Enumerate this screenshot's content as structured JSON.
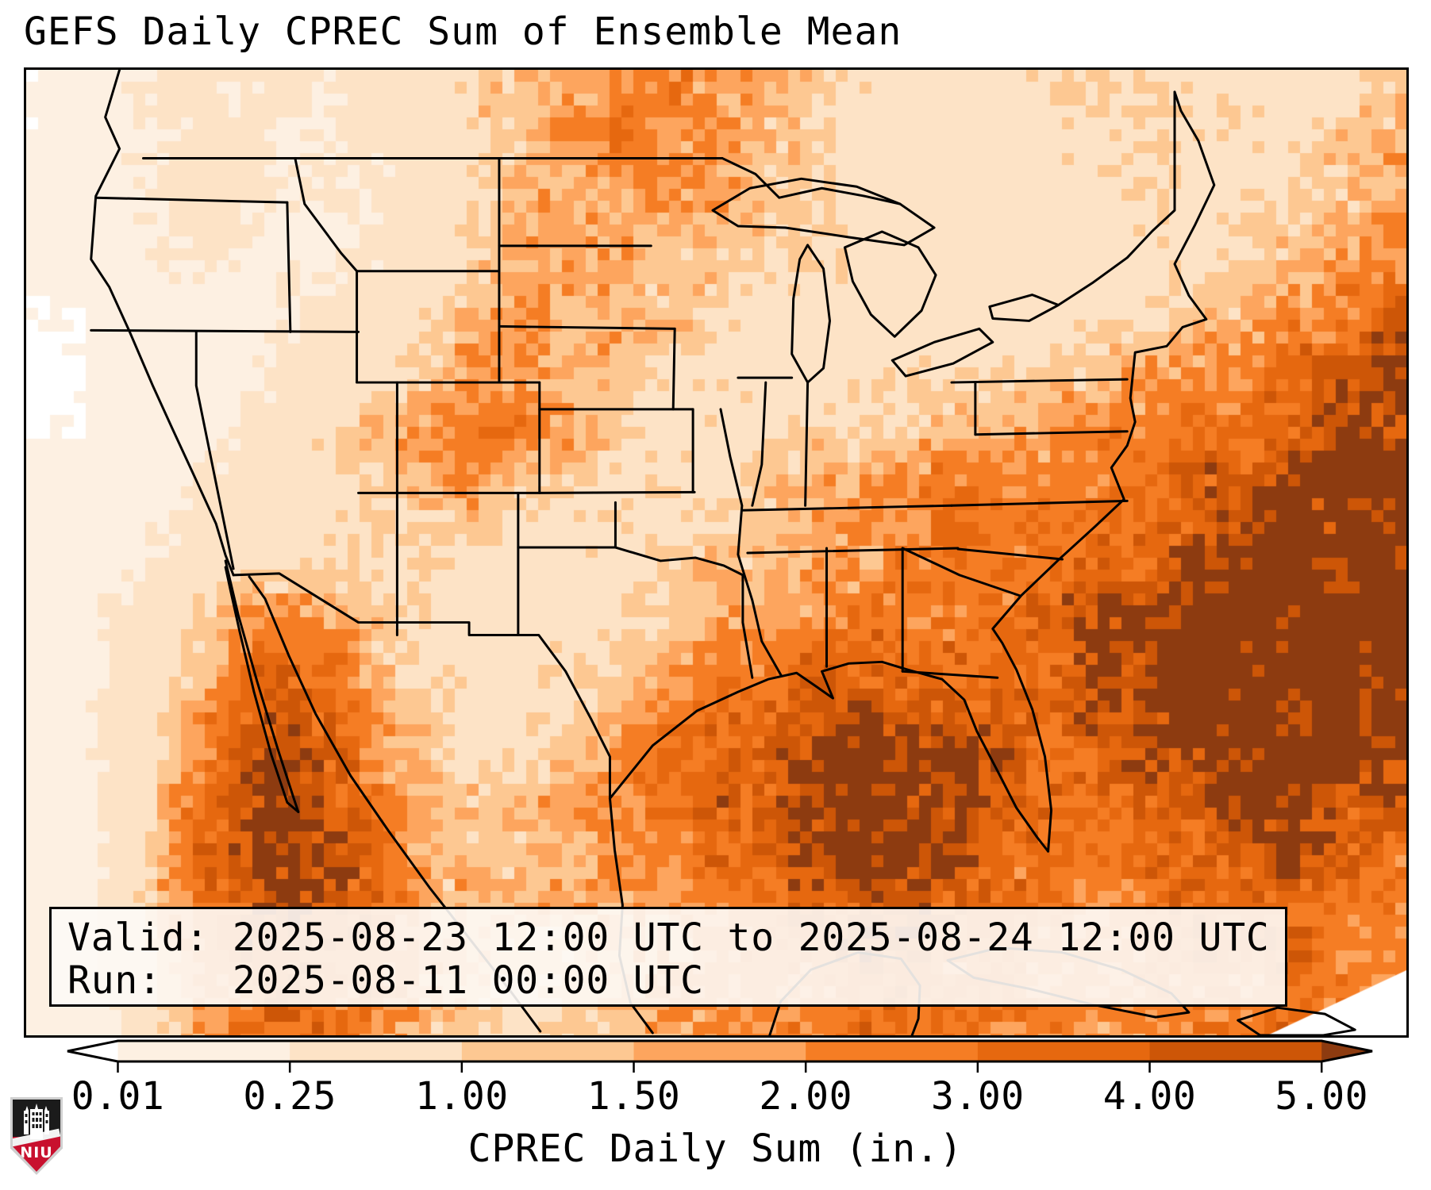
{
  "title": "GEFS Daily CPREC Sum of Ensemble Mean",
  "info_box": {
    "valid_line": "Valid: 2025-08-23 12:00 UTC to 2025-08-24 12:00 UTC",
    "run_line": "Run:   2025-08-11 00:00 UTC"
  },
  "colorbar": {
    "label": "CPREC Daily Sum (in.)",
    "tick_labels": [
      "0.01",
      "0.25",
      "1.00",
      "1.50",
      "2.00",
      "3.00",
      "4.00",
      "5.00"
    ],
    "extend": "both"
  },
  "logo": {
    "text": "NIU",
    "red": "#c8102e",
    "black": "#1b1b1b"
  },
  "chart_data": {
    "type": "heatmap",
    "title": "GEFS Daily CPREC Sum of Ensemble Mean",
    "variable": "CPREC Daily Sum",
    "units": "in.",
    "valid": "2025-08-23 12:00 UTC to 2025-08-24 12:00 UTC",
    "run": "2025-08-11 00:00 UTC",
    "thresholds_in": [
      0.01,
      0.25,
      1.0,
      1.5,
      2.0,
      3.0,
      4.0,
      5.0
    ],
    "palette": [
      "#ffffff",
      "#fdf0e2",
      "#fde3c6",
      "#fdc892",
      "#fda55e",
      "#f57d24",
      "#e6680f",
      "#cd5607",
      "#8d3b10"
    ],
    "legend_note": "colors bin precipitation between thresholds; left arrow < 0.01 in (white), right arrow > 5.00 in (dark brown)",
    "grid_note": "coarse control field of daily precip (inches) over map area, 17 rows (N to S) x 24 cols (W to E); rendered field is bilinearly interpolated with ensemble-like noise",
    "grid_inches": [
      [
        0.008,
        0.04,
        0.3,
        0.4,
        0.3,
        0.3,
        0.5,
        0.8,
        1.2,
        1.8,
        2.2,
        2.4,
        1.8,
        1.2,
        0.8,
        0.6,
        0.6,
        0.8,
        1.2,
        0.8,
        0.6,
        0.7,
        1.0,
        1.2
      ],
      [
        0.008,
        0.05,
        0.25,
        0.35,
        0.3,
        0.3,
        0.4,
        0.7,
        1.3,
        2.0,
        2.5,
        2.2,
        1.6,
        1.0,
        0.8,
        0.6,
        0.5,
        0.7,
        1.0,
        1.2,
        0.8,
        0.8,
        1.2,
        1.5
      ],
      [
        0.01,
        0.06,
        0.3,
        0.4,
        0.25,
        0.25,
        0.3,
        0.6,
        1.1,
        1.6,
        2.0,
        1.8,
        1.5,
        1.0,
        0.8,
        0.5,
        0.4,
        0.6,
        0.8,
        1.0,
        0.7,
        0.9,
        1.4,
        1.8
      ],
      [
        0.01,
        0.05,
        0.2,
        0.3,
        0.2,
        0.2,
        0.3,
        0.8,
        1.4,
        1.8,
        1.7,
        1.5,
        1.2,
        1.0,
        0.7,
        0.5,
        0.4,
        0.5,
        0.7,
        0.8,
        0.9,
        1.2,
        1.8,
        2.2
      ],
      [
        0.008,
        0.01,
        0.1,
        0.15,
        0.2,
        0.3,
        0.5,
        1.0,
        1.6,
        1.8,
        1.5,
        1.2,
        1.0,
        0.8,
        0.6,
        0.5,
        0.5,
        0.6,
        0.7,
        0.9,
        1.2,
        1.8,
        2.6,
        3.6
      ],
      [
        0.008,
        0.01,
        0.08,
        0.12,
        0.3,
        0.6,
        1.0,
        1.5,
        2.2,
        1.8,
        1.2,
        1.0,
        0.8,
        0.7,
        0.7,
        0.8,
        0.9,
        1.1,
        1.4,
        1.8,
        2.2,
        2.8,
        3.8,
        5.0
      ],
      [
        0.008,
        0.01,
        0.05,
        0.1,
        0.4,
        0.8,
        1.4,
        2.2,
        2.6,
        1.6,
        1.0,
        0.8,
        0.8,
        0.9,
        1.1,
        1.4,
        1.7,
        2.0,
        2.4,
        2.8,
        3.2,
        4.0,
        5.0,
        5.8
      ],
      [
        0.05,
        0.05,
        0.1,
        0.3,
        0.6,
        0.8,
        1.2,
        1.6,
        1.4,
        1.0,
        0.8,
        0.8,
        1.0,
        1.4,
        2.2,
        2.6,
        2.4,
        2.2,
        2.6,
        3.2,
        4.2,
        5.5,
        6.2,
        6.4
      ],
      [
        0.1,
        0.1,
        0.2,
        0.5,
        0.8,
        1.0,
        1.0,
        0.8,
        0.8,
        0.7,
        0.8,
        1.0,
        1.2,
        1.6,
        2.0,
        2.4,
        2.6,
        2.8,
        3.2,
        4.5,
        5.8,
        6.4,
        6.5,
        6.5
      ],
      [
        0.15,
        0.2,
        0.4,
        1.0,
        1.8,
        1.6,
        1.0,
        0.6,
        0.5,
        0.6,
        0.8,
        1.2,
        1.6,
        2.0,
        2.4,
        2.8,
        3.0,
        3.4,
        4.5,
        5.8,
        6.5,
        6.5,
        6.5,
        6.5
      ],
      [
        0.01,
        0.2,
        0.5,
        1.6,
        3.0,
        2.6,
        1.4,
        0.8,
        0.6,
        0.8,
        1.2,
        1.8,
        2.6,
        3.2,
        3.6,
        3.4,
        3.2,
        3.6,
        4.5,
        6.0,
        6.5,
        6.5,
        6.5,
        6.5
      ],
      [
        0.01,
        0.15,
        0.6,
        2.2,
        4.5,
        3.6,
        1.8,
        1.0,
        0.8,
        1.2,
        2.0,
        3.0,
        3.8,
        4.5,
        5.5,
        5.0,
        4.0,
        3.4,
        4.0,
        5.5,
        6.5,
        6.5,
        6.5,
        6.2
      ],
      [
        0.008,
        0.1,
        0.8,
        2.8,
        5.5,
        4.2,
        2.2,
        1.2,
        1.0,
        1.6,
        2.4,
        3.2,
        4.2,
        5.8,
        6.4,
        6.0,
        4.5,
        3.2,
        3.0,
        4.0,
        5.5,
        6.3,
        5.5,
        4.5
      ],
      [
        0.008,
        0.1,
        1.0,
        3.2,
        6.0,
        4.8,
        2.6,
        1.4,
        1.2,
        1.6,
        2.2,
        2.8,
        3.6,
        4.8,
        5.8,
        5.2,
        3.8,
        2.8,
        2.6,
        3.2,
        4.2,
        4.8,
        3.6,
        2.8
      ],
      [
        0.008,
        0.1,
        0.8,
        2.6,
        5.0,
        4.5,
        2.8,
        1.6,
        1.2,
        1.4,
        1.8,
        2.2,
        2.8,
        3.4,
        4.0,
        3.8,
        3.0,
        2.6,
        2.4,
        2.8,
        3.4,
        3.6,
        2.8,
        2.2
      ],
      [
        0.008,
        0.08,
        0.6,
        2.0,
        4.0,
        3.8,
        2.4,
        1.4,
        1.0,
        1.2,
        1.6,
        2.0,
        2.4,
        2.8,
        3.2,
        3.0,
        2.6,
        2.4,
        2.2,
        2.6,
        3.0,
        3.2,
        2.6,
        2.0
      ],
      [
        0.008,
        0.06,
        0.5,
        1.6,
        3.2,
        3.2,
        2.2,
        1.2,
        0.9,
        1.0,
        1.4,
        1.8,
        2.2,
        2.6,
        2.8,
        2.6,
        2.4,
        2.2,
        2.0,
        2.4,
        2.8,
        2.8,
        2.4,
        1.8
      ]
    ]
  }
}
